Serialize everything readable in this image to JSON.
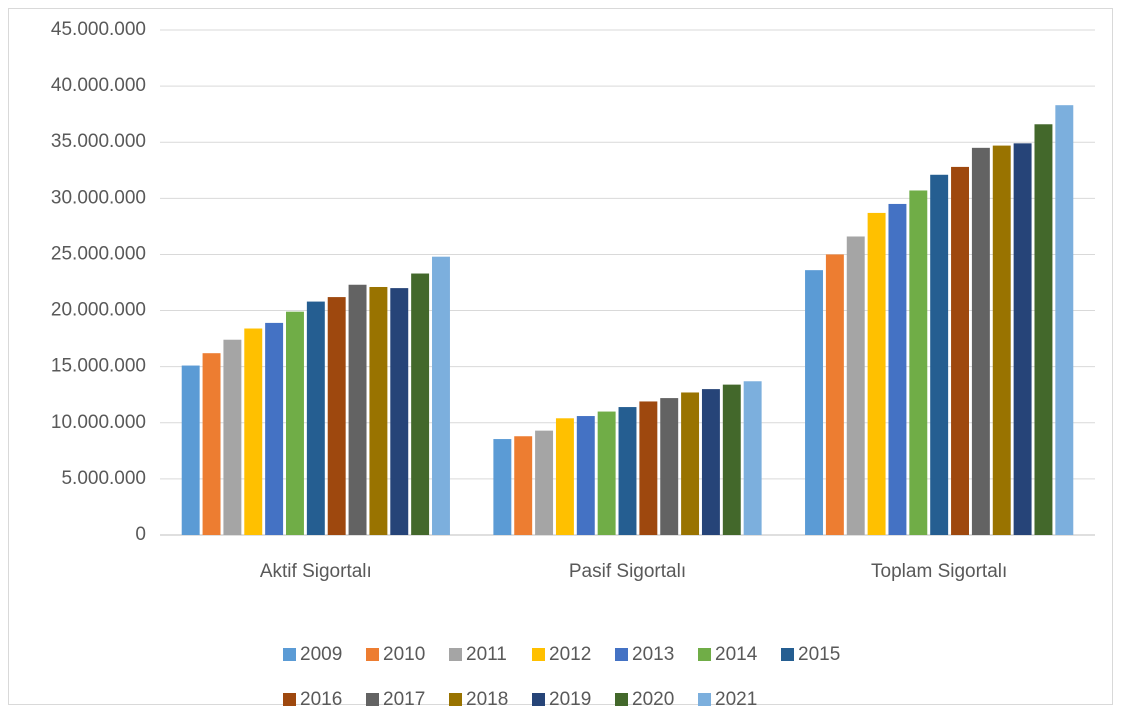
{
  "chart_data": {
    "type": "bar",
    "categories": [
      "Aktif Sigortalı",
      "Pasif Sigortalı",
      "Toplam Sigortalı"
    ],
    "series": [
      {
        "name": "2009",
        "color": "#5b9bd5",
        "values": [
          15100000,
          8550000,
          23600000
        ]
      },
      {
        "name": "2010",
        "color": "#ed7d31",
        "values": [
          16200000,
          8800000,
          25000000
        ]
      },
      {
        "name": "2011",
        "color": "#a5a5a5",
        "values": [
          17400000,
          9300000,
          26600000
        ]
      },
      {
        "name": "2012",
        "color": "#ffc000",
        "values": [
          18400000,
          10400000,
          28700000
        ]
      },
      {
        "name": "2013",
        "color": "#4472c4",
        "values": [
          18900000,
          10600000,
          29500000
        ]
      },
      {
        "name": "2014",
        "color": "#70ad47",
        "values": [
          19900000,
          11000000,
          30700000
        ]
      },
      {
        "name": "2015",
        "color": "#255e91",
        "values": [
          20800000,
          11400000,
          32100000
        ]
      },
      {
        "name": "2016",
        "color": "#9e480e",
        "values": [
          21200000,
          11900000,
          32800000
        ]
      },
      {
        "name": "2017",
        "color": "#636363",
        "values": [
          22300000,
          12200000,
          34500000
        ]
      },
      {
        "name": "2018",
        "color": "#997300",
        "values": [
          22100000,
          12700000,
          34700000
        ]
      },
      {
        "name": "2019",
        "color": "#264478",
        "values": [
          22000000,
          13000000,
          34900000
        ]
      },
      {
        "name": "2020",
        "color": "#43682b",
        "values": [
          23300000,
          13400000,
          36600000
        ]
      },
      {
        "name": "2021",
        "color": "#7cafdd",
        "values": [
          24800000,
          13700000,
          38300000
        ]
      }
    ],
    "ylim": [
      0,
      45000000
    ],
    "yticks": [
      0,
      {
        "value": 5000000,
        "label": "5.000.000"
      },
      {
        "value": 10000000,
        "label": "10.000.000"
      },
      {
        "value": 15000000,
        "label": "15.000.000"
      },
      {
        "value": 20000000,
        "label": "20.000.000"
      },
      {
        "value": 25000000,
        "label": "25.000.000"
      },
      {
        "value": 30000000,
        "label": "30.000.000"
      },
      {
        "value": 35000000,
        "label": "35.000.000"
      },
      {
        "value": 40000000,
        "label": "40.000.000"
      },
      {
        "value": 45000000,
        "label": "45.000.000"
      }
    ],
    "grid": true,
    "legend": "bottom"
  }
}
